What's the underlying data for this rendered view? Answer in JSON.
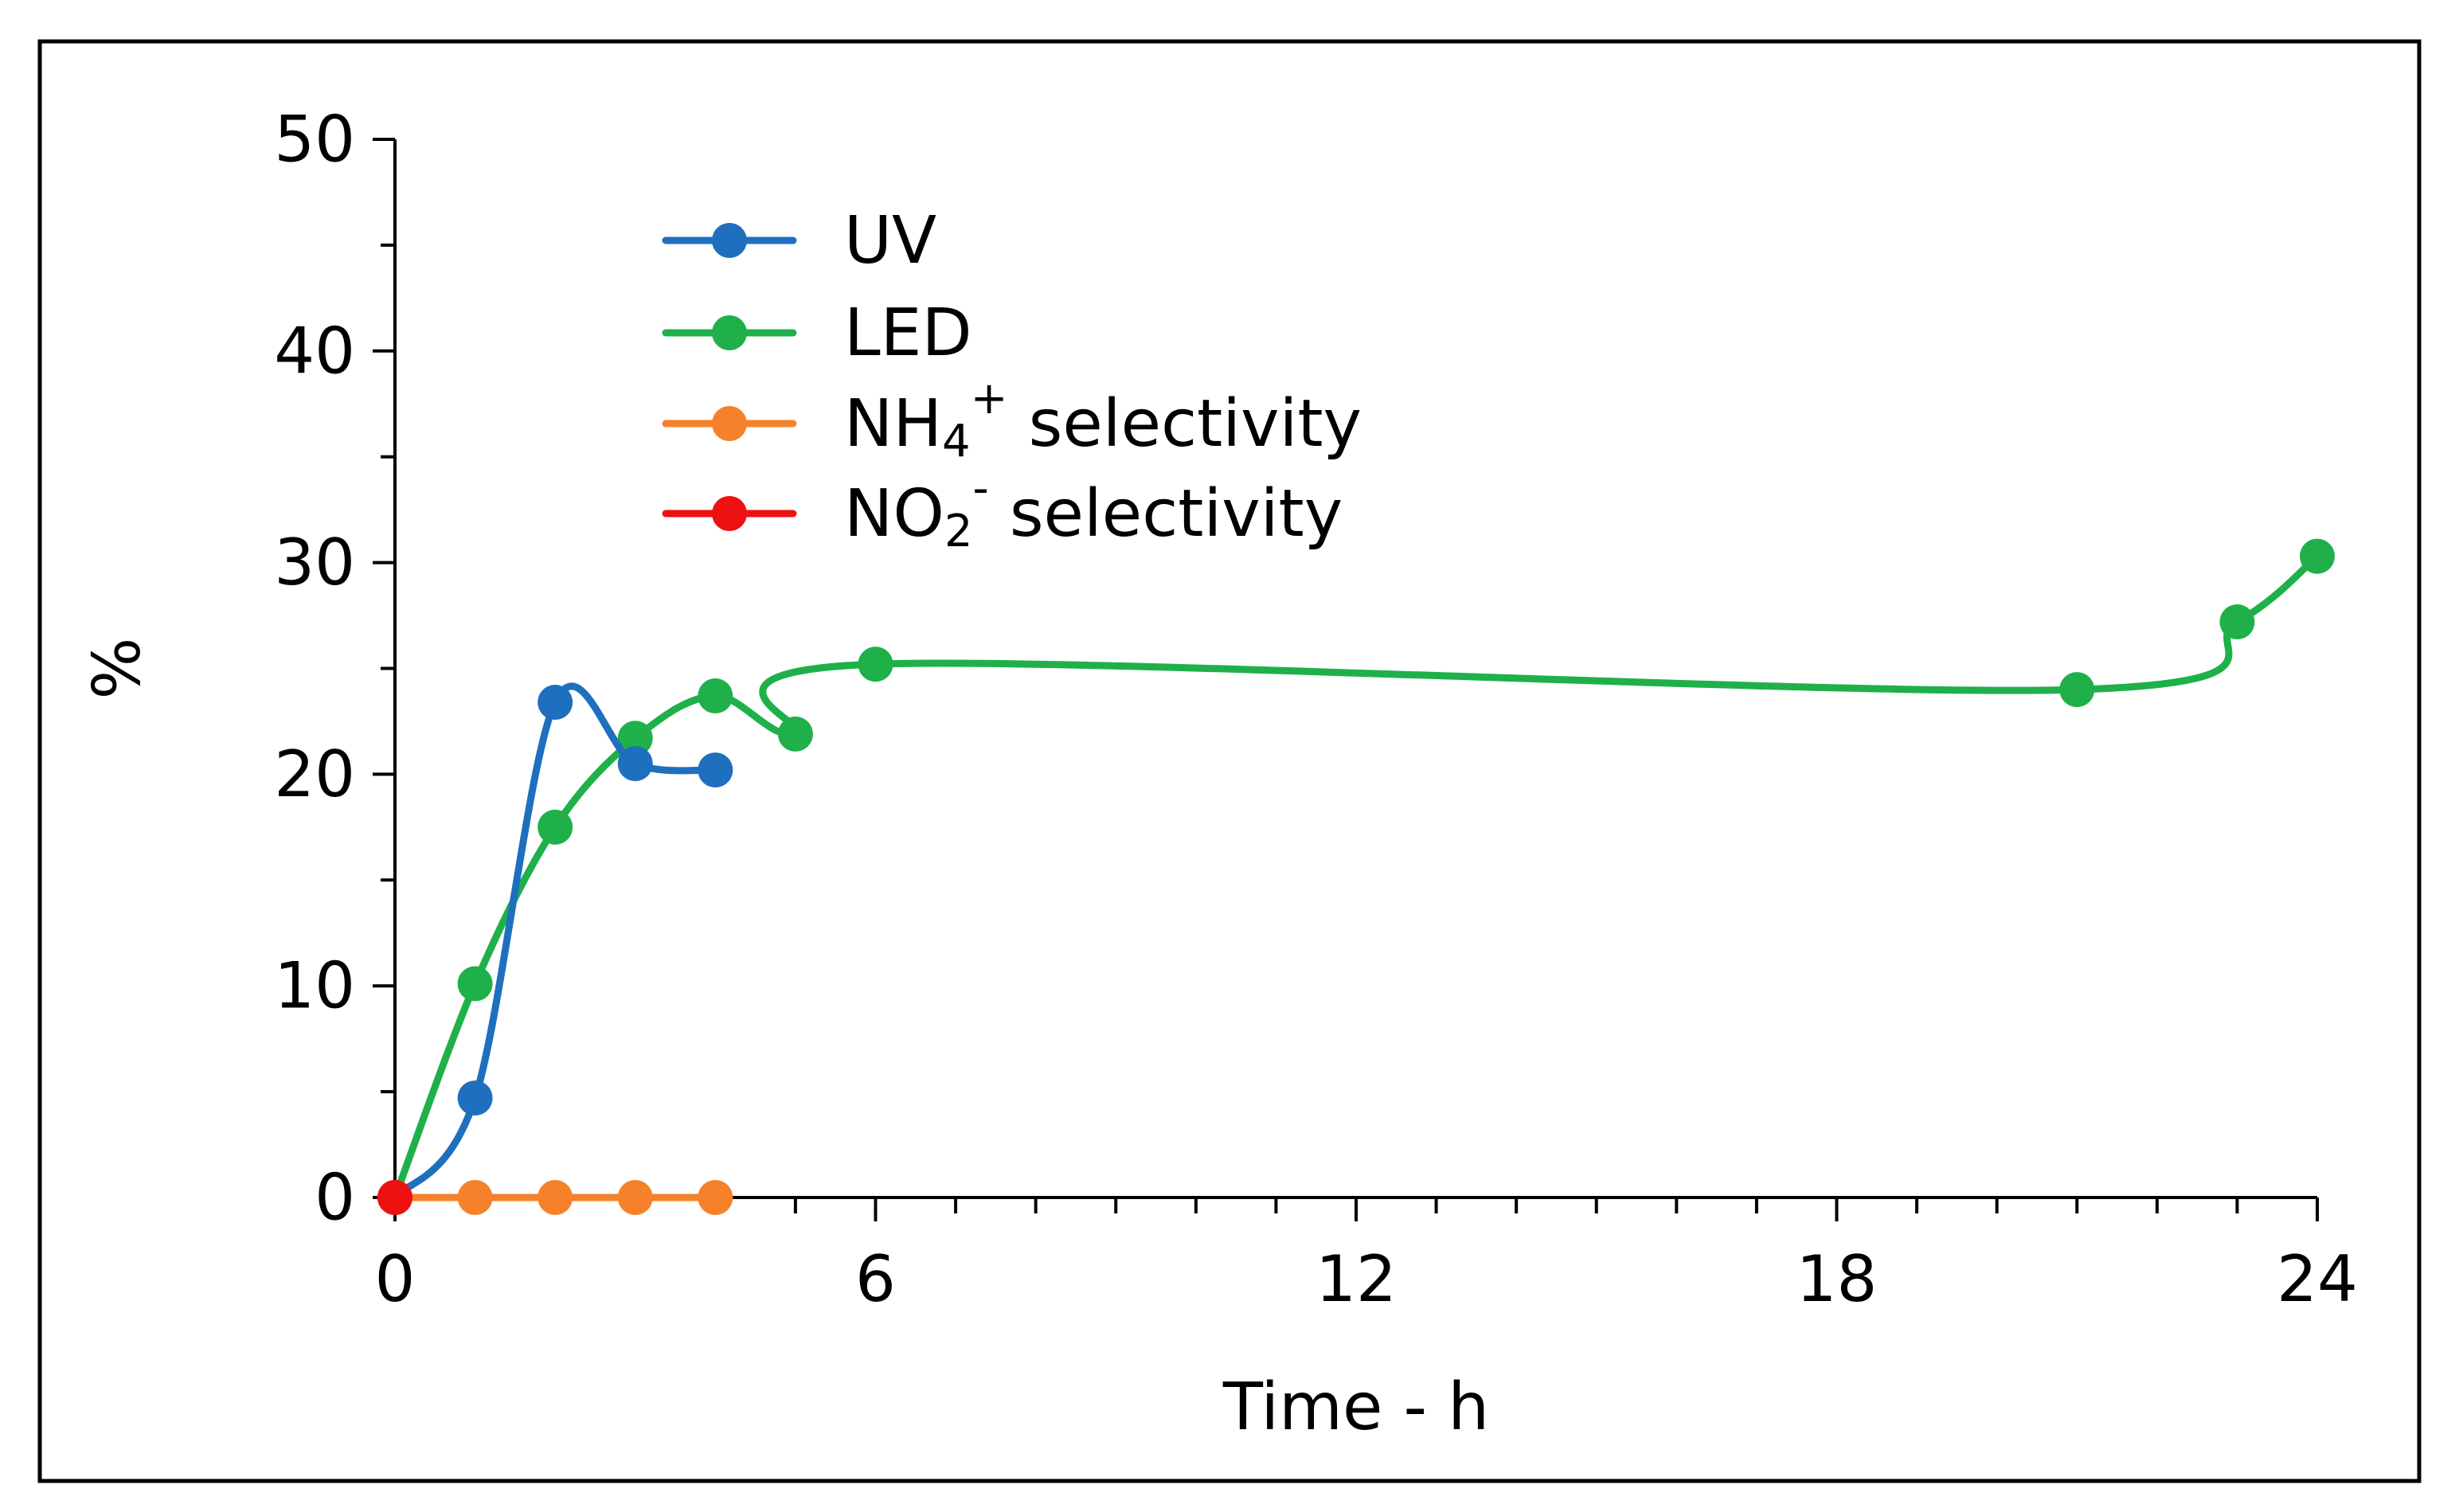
{
  "chart_data": {
    "type": "line",
    "title": "",
    "xlabel": "Time - h",
    "ylabel": "%",
    "xlim": [
      0,
      24
    ],
    "ylim": [
      0,
      50
    ],
    "xticks": [
      "0",
      "6",
      "12",
      "18",
      "24"
    ],
    "yticks": [
      "0",
      "10",
      "20",
      "30",
      "40",
      "50"
    ],
    "legend_position": "top-left",
    "series": [
      {
        "name": "UV",
        "color": "#1f6fbf",
        "x": [
          0,
          1,
          2,
          3,
          4
        ],
        "y": [
          0,
          4.7,
          23.4,
          20.5,
          20.2
        ]
      },
      {
        "name": "LED",
        "color": "#1fb04a",
        "x": [
          0,
          1,
          2,
          3,
          4,
          5,
          6,
          21,
          23,
          24
        ],
        "y": [
          0,
          10.1,
          17.5,
          21.7,
          23.7,
          21.9,
          25.2,
          24.0,
          27.2,
          30.3
        ]
      },
      {
        "name": "NH4+ selectivity",
        "color": "#f5822a",
        "x": [
          0,
          1,
          2,
          3,
          4
        ],
        "y": [
          0,
          0,
          0,
          0,
          0
        ]
      },
      {
        "name": "NO2- selectivity",
        "color": "#ee1111",
        "x": [
          0
        ],
        "y": [
          0
        ]
      }
    ],
    "legend": [
      {
        "base": "UV",
        "sub": "",
        "sup": "",
        "tail": ""
      },
      {
        "base": "LED",
        "sub": "",
        "sup": "",
        "tail": ""
      },
      {
        "base": "NH",
        "sub": "4",
        "sup": "+",
        "tail": " selectivity"
      },
      {
        "base": "NO",
        "sub": "2",
        "sup": "-",
        "tail": " selectivity"
      }
    ]
  }
}
